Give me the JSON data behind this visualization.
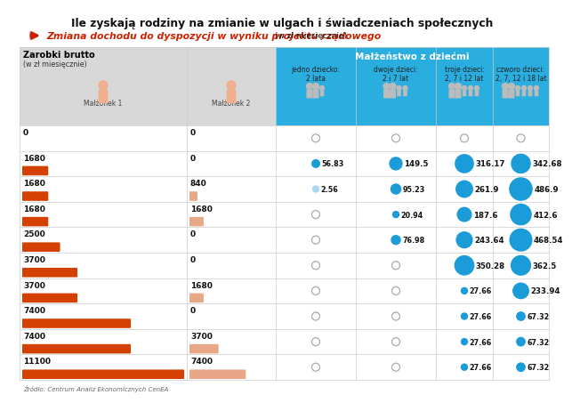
{
  "title": "Ile zyskają rodziny na zmianie w ulgach i świadczeniach społecznych",
  "subtitle_red": "Zmiana dochodu do dyspozycji w wyniku projektu rządowego",
  "subtitle_suffix": "(w zł miesięcznie)",
  "col_header": "Małżeństwo z dziećmi",
  "col1_header": "jedno dziecko:\n2 lata",
  "col2_header": "dwoje dzieci:\n2 i 7 lat",
  "col3_header": "troje dzieci:\n2, 7 i 12 lat",
  "col4_header": "czworo dzieci:\n2, 7, 12 i 18 lat",
  "row_label1": "Zarobki brutto",
  "row_label2": "(w zł miesięcznie)",
  "malzonek1_label": "Małżonek 1",
  "malzonek2_label": "Małżonek 2",
  "source": "Źródło: Centrum Analiz Ekonomicznych CenEA",
  "rows": [
    {
      "m1": 0,
      "m2": 0,
      "v1": null,
      "v2": null,
      "v3": null,
      "v4": null
    },
    {
      "m1": 1680,
      "m2": 0,
      "v1": 56.83,
      "v2": 149.5,
      "v3": 316.17,
      "v4": 342.68
    },
    {
      "m1": 1680,
      "m2": 840,
      "v1": 2.56,
      "v2": 95.23,
      "v3": 261.9,
      "v4": 486.9
    },
    {
      "m1": 1680,
      "m2": 1680,
      "v1": null,
      "v2": 20.94,
      "v3": 187.6,
      "v4": 412.6
    },
    {
      "m1": 2500,
      "m2": 0,
      "v1": null,
      "v2": 76.98,
      "v3": 243.64,
      "v4": 468.54
    },
    {
      "m1": 3700,
      "m2": 0,
      "v1": null,
      "v2": null,
      "v3": 350.28,
      "v4": 362.5
    },
    {
      "m1": 3700,
      "m2": 1680,
      "v1": null,
      "v2": null,
      "v3": 27.66,
      "v4": 233.94
    },
    {
      "m1": 7400,
      "m2": 0,
      "v1": null,
      "v2": null,
      "v3": 27.66,
      "v4": 67.32
    },
    {
      "m1": 7400,
      "m2": 3700,
      "v1": null,
      "v2": null,
      "v3": 27.66,
      "v4": 67.32
    },
    {
      "m1": 11100,
      "m2": 7400,
      "v1": null,
      "v2": null,
      "v3": 27.66,
      "v4": 67.32
    }
  ],
  "bar_color_m1": "#d44000",
  "bar_color_m2": "#e8a888",
  "bubble_color": "#1a9cd8",
  "bubble_tiny_color": "#a8d8f0",
  "zero_color": "#aaaaaa",
  "header_bg": "#2aaee0",
  "header_text": "#ffffff",
  "left_header_bg": "#d8d8d8",
  "grid_color": "#cccccc",
  "title_color": "#111111",
  "subtitle_color": "#cc2200",
  "bg_color": "#ffffff"
}
